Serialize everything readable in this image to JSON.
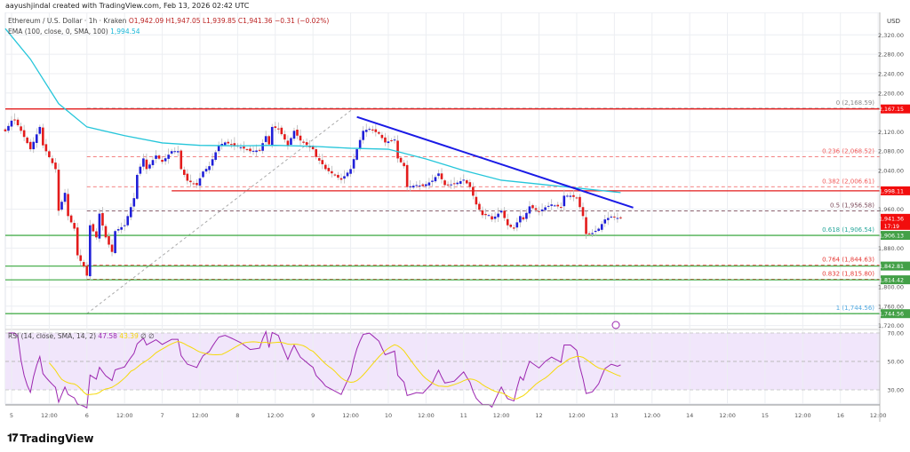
{
  "header": {
    "credit": "aayushjindal created with TradingView.com, Feb 13, 2026 02:42 UTC",
    "symbol": "Ethereum / U.S. Dollar · 1h · Kraken",
    "open": "O1,942.09",
    "high": "H1,947.05",
    "low": "L1,939.85",
    "close": "C1,941.36",
    "change": "−0.31 (−0.02%)",
    "ema_label": "EMA (100, close, 0, SMA, 100)",
    "ema_value": "1,994.54"
  },
  "rsi_legend": {
    "label": "RSI (14, close, SMA, 14, 2)",
    "rsi": "47.58",
    "sma": "43.39",
    "extra1": "∅",
    "extra2": "∅"
  },
  "logo": {
    "text": "TradingView"
  },
  "colors": {
    "up": "#1f1fd8",
    "down": "#e31b1b",
    "ema": "#26c6da",
    "trendline": "#1a1ae6",
    "resistance": "#e31b1b",
    "support": "#4caf50",
    "rsi": "#9c27b0",
    "rsi_sma": "#f5d90a"
  },
  "chart_data": {
    "type": "candlestick",
    "currency": "USD",
    "price_ticks": [
      "2,320.00",
      "2,280.00",
      "2,240.00",
      "2,200.00",
      "2,120.00",
      "2,080.00",
      "2,040.00",
      "1,960.00",
      "1,880.00",
      "1,800.00",
      "1,760.00",
      "1,720.00"
    ],
    "price_tick_values": [
      2320,
      2280,
      2240,
      2200,
      2120,
      2080,
      2040,
      1960,
      1880,
      1800,
      1760,
      1720
    ],
    "time_ticks": [
      "5",
      "12:00",
      "6",
      "12:00",
      "7",
      "12:00",
      "8",
      "12:00",
      "9",
      "12:00",
      "10",
      "12:00",
      "11",
      "12:00",
      "12",
      "12:00",
      "13",
      "12:00",
      "14",
      "12:00",
      "15",
      "12:00",
      "16",
      "12:00"
    ],
    "closes": [
      [
        "Feb 4, 22:00",
        2121
      ],
      [
        "Feb 5, 00:00",
        2143
      ],
      [
        "Feb 5, 01:00",
        2145
      ],
      [
        "Feb 5, 03:00",
        2122
      ],
      [
        "Feb 5, 06:00",
        2084
      ],
      [
        "Feb 5, 09:00",
        2130
      ],
      [
        "Feb 5, 10:00",
        2092
      ],
      [
        "Feb 5, 14:00",
        2043
      ],
      [
        "Feb 5, 15:00",
        1957
      ],
      [
        "Feb 5, 17:00",
        1994
      ],
      [
        "Feb 5, 18:00",
        1946
      ],
      [
        "Feb 5, 20:00",
        1920
      ],
      [
        "Feb 5, 21:00",
        1865
      ],
      [
        "Feb 5, 23:00",
        1842
      ],
      [
        "Feb 6, 00:00",
        1823
      ],
      [
        "Feb 6, 01:00",
        1927
      ],
      [
        "Feb 6, 03:00",
        1902
      ],
      [
        "Feb 6, 04:00",
        1951
      ],
      [
        "Feb 6, 06:00",
        1902
      ],
      [
        "Feb 6, 08:00",
        1872
      ],
      [
        "Feb 6, 09:00",
        1915
      ],
      [
        "Feb 6, 12:00",
        1927
      ],
      [
        "Feb 6, 13:00",
        1946
      ],
      [
        "Feb 6, 15:00",
        1983
      ],
      [
        "Feb 6, 16:00",
        2031
      ],
      [
        "Feb 6, 18:00",
        2065
      ],
      [
        "Feb 6, 19:00",
        2043
      ],
      [
        "Feb 6, 22:00",
        2071
      ],
      [
        "Feb 7, 00:00",
        2058
      ],
      [
        "Feb 7, 03:00",
        2080
      ],
      [
        "Feb 7, 05:00",
        2080
      ],
      [
        "Feb 7, 06:00",
        2043
      ],
      [
        "Feb 7, 08:00",
        2019
      ],
      [
        "Feb 7, 11:00",
        2010
      ],
      [
        "Feb 7, 13:00",
        2038
      ],
      [
        "Feb 7, 15:00",
        2049
      ],
      [
        "Feb 7, 18:00",
        2092
      ],
      [
        "Feb 7, 20:00",
        2098
      ],
      [
        "Feb 7, 22:00",
        2094
      ],
      [
        "Feb 8, 01:00",
        2088
      ],
      [
        "Feb 8, 04:00",
        2080
      ],
      [
        "Feb 8, 07:00",
        2082
      ],
      [
        "Feb 8, 09:00",
        2111
      ],
      [
        "Feb 8, 10:00",
        2094
      ],
      [
        "Feb 8, 11:00",
        2130
      ],
      [
        "Feb 8, 13:00",
        2126
      ],
      [
        "Feb 8, 15:00",
        2104
      ],
      [
        "Feb 8, 16:00",
        2092
      ],
      [
        "Feb 8, 18:00",
        2122
      ],
      [
        "Feb 8, 20:00",
        2102
      ],
      [
        "Feb 8, 23:00",
        2088
      ],
      [
        "Feb 9, 00:00",
        2084
      ],
      [
        "Feb 9, 01:00",
        2068
      ],
      [
        "Feb 9, 03:00",
        2053
      ],
      [
        "Feb 9, 04:00",
        2043
      ],
      [
        "Feb 9, 09:00",
        2021
      ],
      [
        "Feb 9, 12:00",
        2043
      ],
      [
        "Feb 9, 14:00",
        2084
      ],
      [
        "Feb 9, 16:00",
        2122
      ],
      [
        "Feb 9, 18:00",
        2126
      ],
      [
        "Feb 9, 21:00",
        2116
      ],
      [
        "Feb 9, 23:00",
        2098
      ],
      [
        "Feb 10, 02:00",
        2104
      ],
      [
        "Feb 10, 03:00",
        2065
      ],
      [
        "Feb 10, 05:00",
        2049
      ],
      [
        "Feb 10, 06:00",
        2006
      ],
      [
        "Feb 10, 09:00",
        2010
      ],
      [
        "Feb 10, 11:00",
        2008
      ],
      [
        "Feb 10, 14:00",
        2019
      ],
      [
        "Feb 10, 16:00",
        2034
      ],
      [
        "Feb 10, 18:00",
        2010
      ],
      [
        "Feb 10, 21:00",
        2012
      ],
      [
        "Feb 11, 00:00",
        2021
      ],
      [
        "Feb 11, 02:00",
        2006
      ],
      [
        "Feb 11, 04:00",
        1970
      ],
      [
        "Feb 11, 06:00",
        1948
      ],
      [
        "Feb 11, 08:00",
        1948
      ],
      [
        "Feb 11, 09:00",
        1939
      ],
      [
        "Feb 11, 12:00",
        1957
      ],
      [
        "Feb 11, 14:00",
        1927
      ],
      [
        "Feb 11, 16:00",
        1920
      ],
      [
        "Feb 11, 18:00",
        1946
      ],
      [
        "Feb 11, 19:00",
        1939
      ],
      [
        "Feb 11, 21:00",
        1966
      ],
      [
        "Feb 12, 00:00",
        1955
      ],
      [
        "Feb 12, 02:00",
        1964
      ],
      [
        "Feb 12, 04:00",
        1970
      ],
      [
        "Feb 12, 07:00",
        1964
      ],
      [
        "Feb 12, 08:00",
        1988
      ],
      [
        "Feb 12, 10:00",
        1988
      ],
      [
        "Feb 12, 12:00",
        1983
      ],
      [
        "Feb 12, 14:00",
        1946
      ],
      [
        "Feb 12, 15:00",
        1909
      ],
      [
        "Feb 12, 17:00",
        1911
      ],
      [
        "Feb 12, 19:00",
        1920
      ],
      [
        "Feb 12, 21:00",
        1939
      ],
      [
        "Feb 12, 23:00",
        1945
      ],
      [
        "Feb 13, 01:00",
        1942.09
      ],
      [
        "Feb 13, 02:00",
        1941.36
      ]
    ],
    "ema100": [
      [
        "Feb 4, 22:00",
        2333
      ],
      [
        "Feb 5, 06:00",
        2270
      ],
      [
        "Feb 5, 15:00",
        2178
      ],
      [
        "Feb 6, 00:00",
        2130
      ],
      [
        "Feb 6, 12:00",
        2112
      ],
      [
        "Feb 7, 00:00",
        2097
      ],
      [
        "Feb 7, 12:00",
        2092
      ],
      [
        "Feb 8, 00:00",
        2091
      ],
      [
        "Feb 8, 12:00",
        2092
      ],
      [
        "Feb 9, 00:00",
        2090
      ],
      [
        "Feb 9, 12:00",
        2086
      ],
      [
        "Feb 10, 00:00",
        2084
      ],
      [
        "Feb 10, 12:00",
        2064
      ],
      [
        "Feb 11, 00:00",
        2040
      ],
      [
        "Feb 11, 12:00",
        2020
      ],
      [
        "Feb 12, 00:00",
        2012
      ],
      [
        "Feb 12, 12:00",
        2004
      ],
      [
        "Feb 13, 02:00",
        1994.54
      ]
    ],
    "trendline": [
      [
        "Feb 9, 14:00",
        2150.6
      ],
      [
        "Feb 13, 06:00",
        1963.5
      ]
    ],
    "horizontal_lines": [
      {
        "price": 2167.15,
        "label": "2,167.15",
        "kind": "resistance",
        "from": "Feb 4, 20:00"
      },
      {
        "price": 1998.11,
        "label": "1,998.11",
        "kind": "resistance",
        "from": "Feb 7, 03:00"
      },
      {
        "price": 1906.13,
        "label": "1,906.13",
        "kind": "support",
        "from": "Feb 4, 20:00"
      },
      {
        "price": 1842.81,
        "label": "1,842.81",
        "kind": "support",
        "from": "Feb 4, 20:00"
      },
      {
        "price": 1814.42,
        "label": "1,814.42",
        "kind": "support",
        "from": "Feb 4, 20:00"
      },
      {
        "price": 1744.56,
        "label": "1,744.56",
        "kind": "support",
        "from": "Feb 4, 20:00"
      }
    ],
    "fibonacci": {
      "from": [
        "Feb 6, 00:00",
        1744.56
      ],
      "to": [
        "Feb 9, 13:00",
        2168.59
      ],
      "levels": [
        {
          "ratio": "0",
          "price": 2168.59,
          "label": "0 (2,168.59)",
          "color": "#888888"
        },
        {
          "ratio": "0.236",
          "price": 2068.52,
          "label": "0.236 (2,068.52)",
          "color": "#f05a5a"
        },
        {
          "ratio": "0.382",
          "price": 2006.61,
          "label": "0.382 (2,006.61)",
          "color": "#f05a5a"
        },
        {
          "ratio": "0.5",
          "price": 1956.58,
          "label": "0.5 (1,956.58)",
          "color": "#7a4a5a"
        },
        {
          "ratio": "0.618",
          "price": 1906.54,
          "label": "0.618 (1,906.54)",
          "color": "#26a69a"
        },
        {
          "ratio": "0.764",
          "price": 1844.63,
          "label": "0.764 (1,844.63)",
          "color": "#e53935"
        },
        {
          "ratio": "0.832",
          "price": 1815.8,
          "label": "0.832 (1,815.80)",
          "color": "#e53935"
        },
        {
          "ratio": "1",
          "price": 1744.56,
          "label": "1 (1,744.56)",
          "color": "#4fa8e0"
        }
      ]
    },
    "last_price": {
      "label": "1,941.36",
      "countdown": "17:19",
      "price": 1941.36
    },
    "rsi": {
      "period": 14,
      "ticks": [
        "70.00",
        "50.00",
        "30.00"
      ],
      "tick_values": [
        70,
        50,
        30
      ],
      "current": 47.58,
      "sma": 43.39
    }
  }
}
